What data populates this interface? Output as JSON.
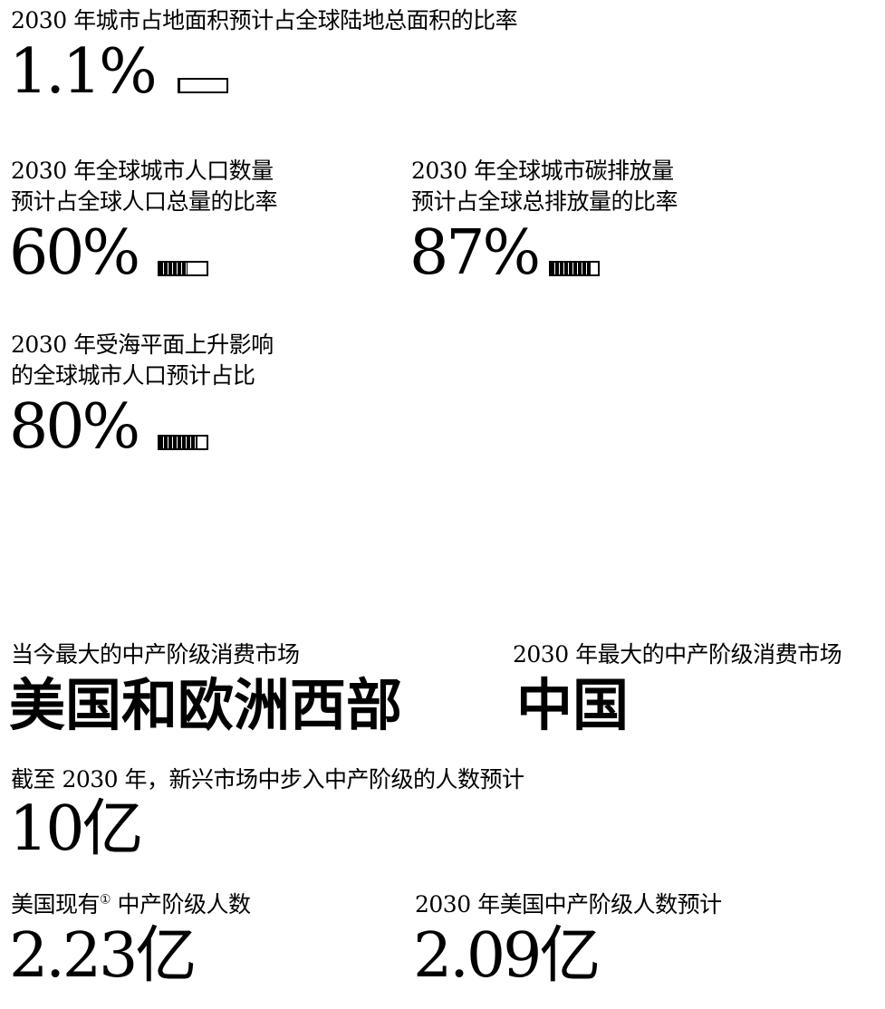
{
  "stats": {
    "land_area": {
      "label": "2030 年城市占地面积预计占全球陆地总面积的比率",
      "value": "1.1%",
      "fraction": 0.011
    },
    "population": {
      "label_line1": "2030 年全球城市人口数量",
      "label_line2": "预计占全球人口总量的比率",
      "value": "60%",
      "fraction": 0.6
    },
    "emissions": {
      "label_line1": "2030 年全球城市碳排放量",
      "label_line2": "预计占全球总排放量的比率",
      "value": "87%",
      "fraction": 0.87
    },
    "sea_level": {
      "label_line1": "2030 年受海平面上升影响",
      "label_line2": "的全球城市人口预计占比",
      "value": "80%",
      "fraction": 0.8
    }
  },
  "middle_class": {
    "largest_today": {
      "label": "当今最大的中产阶级消费市场",
      "value": "美国和欧洲西部"
    },
    "largest_2030": {
      "label": "2030 年最大的中产阶级消费市场",
      "value": "中国"
    },
    "emerging": {
      "label": "截至 2030 年，新兴市场中步入中产阶级的人数预计",
      "value": "10亿"
    },
    "us_current": {
      "label": "美国现有",
      "label_mark": "①",
      "label_suffix": " 中产阶级人数",
      "value": "2.23亿"
    },
    "us_2030": {
      "label": "2030 年美国中产阶级人数预计",
      "value": "2.09亿"
    }
  }
}
